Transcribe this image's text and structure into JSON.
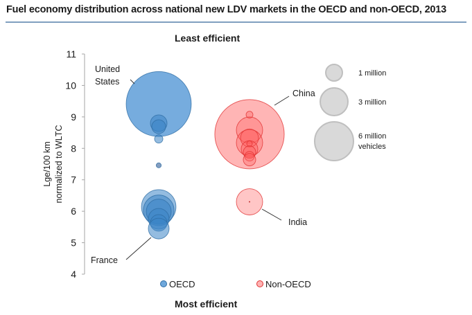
{
  "title": "Fuel economy distribution across national new LDV markets in the OECD and non-OECD, 2013",
  "chart_data": {
    "type": "scatter",
    "subtype": "bubble",
    "title": "Fuel economy distribution across national new LDV markets in the OECD and non-OECD, 2013",
    "top_annotation": "Least efficient",
    "bottom_annotation": "Most efficient",
    "ylabel_line1": "Lge/100 km",
    "ylabel_line2": "normalized to WLTC",
    "ylim": [
      4,
      11
    ],
    "yticks": [
      "11",
      "10",
      "9",
      "8",
      "7",
      "6",
      "5",
      "4"
    ],
    "grid": false,
    "size_unit": "million vehicles (new LDV sales)",
    "series": [
      {
        "name": "OECD",
        "color": "#5b9bd5",
        "fill": "#5b9bd5",
        "stroke": "#2e6da4",
        "points": [
          {
            "label": "United States",
            "y": 9.41,
            "size": 15.3
          },
          {
            "label": "",
            "y": 8.8,
            "size": 1.0
          },
          {
            "label": "",
            "y": 8.69,
            "size": 0.7
          },
          {
            "label": "",
            "y": 8.3,
            "size": 0.25
          },
          {
            "label": "",
            "y": 7.46,
            "size": 0.09
          },
          {
            "label": "",
            "y": 6.14,
            "size": 4.3
          },
          {
            "label": "",
            "y": 6.03,
            "size": 3.4
          },
          {
            "label": "",
            "y": 5.99,
            "size": 2.25
          },
          {
            "label": "",
            "y": 5.76,
            "size": 1.56
          },
          {
            "label": "",
            "y": 5.63,
            "size": 1.0
          },
          {
            "label": "France",
            "y": 5.45,
            "size": 1.56
          }
        ]
      },
      {
        "name": "Non-OECD",
        "color": "#ff8080",
        "fill": "#ff6b6b",
        "stroke": "#e03030",
        "points": [
          {
            "label": "China",
            "y": 8.45,
            "size": 17.4
          },
          {
            "label": "",
            "y": 9.07,
            "size": 0.17
          },
          {
            "label": "",
            "y": 8.58,
            "size": 2.5
          },
          {
            "label": "",
            "y": 8.18,
            "size": 2.5
          },
          {
            "label": "",
            "y": 8.33,
            "size": 1.17
          },
          {
            "label": "",
            "y": 7.98,
            "size": 1.0
          },
          {
            "label": "",
            "y": 8.15,
            "size": 0.11
          },
          {
            "label": "",
            "y": 7.88,
            "size": 0.56
          },
          {
            "label": "",
            "y": 7.75,
            "size": 0.34
          },
          {
            "label": "",
            "y": 7.64,
            "size": 0.56
          },
          {
            "label": "India",
            "y": 6.3,
            "size": 2.5
          }
        ]
      }
    ],
    "size_legend": [
      {
        "label": "1 million",
        "size": 1
      },
      {
        "label": "3 million",
        "size": 3
      },
      {
        "label": "6 million",
        "label2": "vehicles",
        "size": 6
      }
    ],
    "legend": [
      "OECD",
      "Non-OECD"
    ],
    "legend_position": "bottom"
  }
}
